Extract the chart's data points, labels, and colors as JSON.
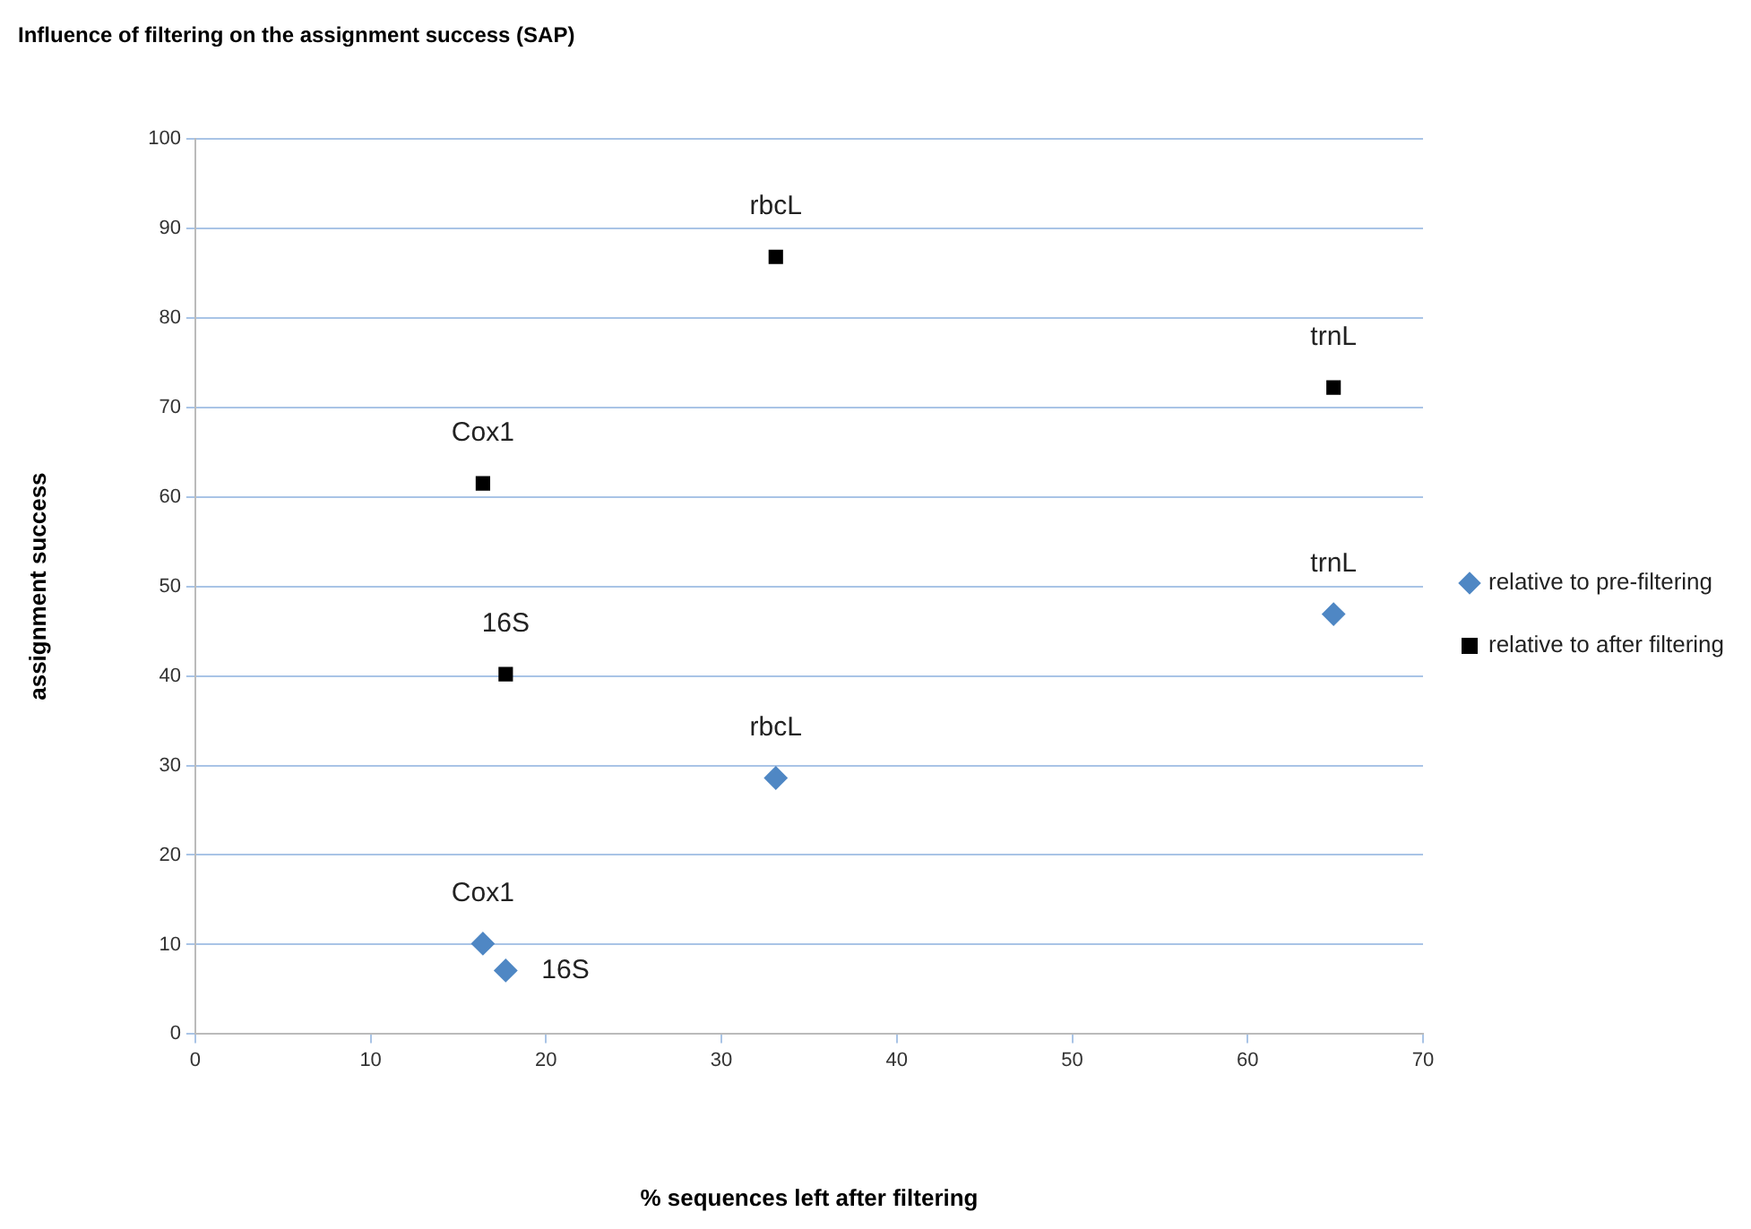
{
  "chart_data": {
    "type": "scatter",
    "title": "Influence of filtering on the assignment success (SAP)",
    "xlabel": "% sequences left after filtering",
    "ylabel": "assignment success",
    "xlim": [
      0,
      70
    ],
    "xticks": [
      0,
      10,
      20,
      30,
      40,
      50,
      60,
      70
    ],
    "ylim": [
      0,
      100
    ],
    "yticks": [
      0,
      10,
      20,
      30,
      40,
      50,
      60,
      70,
      80,
      90,
      100
    ],
    "grid": "y",
    "legend": "right",
    "series": [
      {
        "name": "relative to pre-filtering",
        "color": "#4f87c4",
        "marker": "diamond",
        "x": [
          16.4,
          17.7,
          33.1,
          64.9
        ],
        "values": [
          10.1,
          7.1,
          28.6,
          46.9
        ]
      },
      {
        "name": "relative to after filtering",
        "color": "#000000",
        "marker": "square",
        "x": [
          16.4,
          17.7,
          33.1,
          64.9
        ],
        "values": [
          61.5,
          40.2,
          86.8,
          72.2
        ]
      }
    ],
    "annotations": [
      {
        "text": "Cox1",
        "x": 16.4,
        "y": 10.1
      },
      {
        "text": "16S",
        "x": 17.7,
        "y": 7.1
      },
      {
        "text": "rbcL",
        "x": 33.1,
        "y": 28.6
      },
      {
        "text": "trnL",
        "x": 64.9,
        "y": 46.9
      },
      {
        "text": "Cox1",
        "x": 16.4,
        "y": 61.5
      },
      {
        "text": "16S",
        "x": 17.7,
        "y": 40.2
      },
      {
        "text": "rbcL",
        "x": 33.1,
        "y": 86.8
      },
      {
        "text": "trnL",
        "x": 64.9,
        "y": 72.2
      }
    ]
  }
}
